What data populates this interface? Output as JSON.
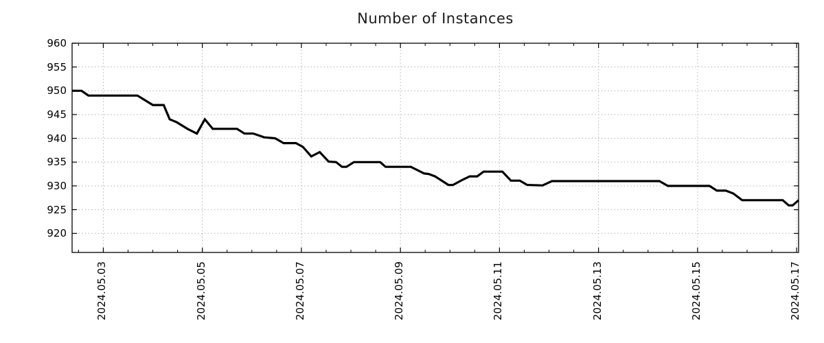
{
  "title": "Number of Instances",
  "chart_data": {
    "type": "line",
    "title": "Number of Instances",
    "xlabel": "",
    "ylabel": "",
    "legend": "none",
    "grid": "dotted-major",
    "x_axis": {
      "tick_labels": [
        "2024.05.03",
        "2024.05.05",
        "2024.05.07",
        "2024.05.09",
        "2024.05.11",
        "2024.05.13",
        "2024.05.15",
        "2024.05.17"
      ],
      "tick_positions_days": [
        1,
        3,
        5,
        7,
        9,
        11,
        13,
        15
      ],
      "minor_tick_interval_days": 0.5,
      "range_days": [
        0.37,
        15.04
      ],
      "days_origin": "2024.05.02"
    },
    "y_axis": {
      "tick_labels": [
        "960",
        "955",
        "950",
        "945",
        "940",
        "935",
        "930",
        "925",
        "920"
      ],
      "tick_values": [
        960,
        955,
        950,
        945,
        940,
        935,
        930,
        925,
        920
      ],
      "range": [
        916,
        960
      ]
    },
    "colors": {
      "line": "#000000",
      "grid": "#b0b0b0",
      "axis": "#000000",
      "title": "#1a1a1a"
    },
    "series": [
      {
        "name": "instances",
        "points": [
          [
            0.37,
            950
          ],
          [
            0.56,
            950
          ],
          [
            0.7,
            949
          ],
          [
            1.69,
            949
          ],
          [
            2.0,
            947
          ],
          [
            2.22,
            947
          ],
          [
            2.34,
            944
          ],
          [
            2.48,
            943.4
          ],
          [
            2.7,
            942
          ],
          [
            2.89,
            941
          ],
          [
            3.05,
            944
          ],
          [
            3.21,
            942
          ],
          [
            3.7,
            942
          ],
          [
            3.85,
            941
          ],
          [
            4.03,
            941
          ],
          [
            4.25,
            940.2
          ],
          [
            4.47,
            940
          ],
          [
            4.64,
            939
          ],
          [
            4.89,
            939
          ],
          [
            5.03,
            938.2
          ],
          [
            5.2,
            936.2
          ],
          [
            5.37,
            937.1
          ],
          [
            5.55,
            935.1
          ],
          [
            5.7,
            935
          ],
          [
            5.82,
            934
          ],
          [
            5.91,
            934
          ],
          [
            6.06,
            935
          ],
          [
            6.59,
            935
          ],
          [
            6.7,
            934
          ],
          [
            7.21,
            934
          ],
          [
            7.48,
            932.6
          ],
          [
            7.57,
            932.5
          ],
          [
            7.7,
            932
          ],
          [
            7.97,
            930.2
          ],
          [
            8.06,
            930.2
          ],
          [
            8.26,
            931.3
          ],
          [
            8.4,
            932
          ],
          [
            8.55,
            932
          ],
          [
            8.68,
            933
          ],
          [
            9.06,
            933
          ],
          [
            9.23,
            931.1
          ],
          [
            9.41,
            931.1
          ],
          [
            9.56,
            930.2
          ],
          [
            9.87,
            930.1
          ],
          [
            10.06,
            931
          ],
          [
            12.23,
            931
          ],
          [
            12.4,
            930
          ],
          [
            13.24,
            930
          ],
          [
            13.39,
            929
          ],
          [
            13.57,
            929
          ],
          [
            13.72,
            928.4
          ],
          [
            13.9,
            927
          ],
          [
            14.72,
            927
          ],
          [
            14.84,
            925.9
          ],
          [
            14.92,
            925.9
          ],
          [
            15.04,
            927
          ]
        ]
      }
    ]
  }
}
